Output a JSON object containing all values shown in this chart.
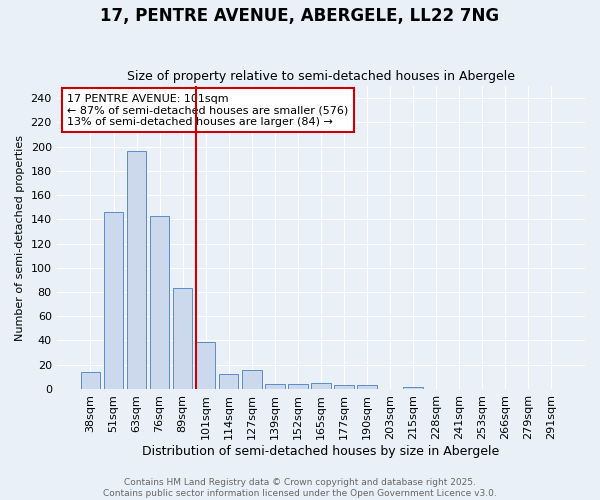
{
  "title1": "17, PENTRE AVENUE, ABERGELE, LL22 7NG",
  "title2": "Size of property relative to semi-detached houses in Abergele",
  "xlabel": "Distribution of semi-detached houses by size in Abergele",
  "ylabel": "Number of semi-detached properties",
  "categories": [
    "38sqm",
    "51sqm",
    "63sqm",
    "76sqm",
    "89sqm",
    "101sqm",
    "114sqm",
    "127sqm",
    "139sqm",
    "152sqm",
    "165sqm",
    "177sqm",
    "190sqm",
    "203sqm",
    "215sqm",
    "228sqm",
    "241sqm",
    "253sqm",
    "266sqm",
    "279sqm",
    "291sqm"
  ],
  "values": [
    14,
    146,
    196,
    143,
    83,
    39,
    12,
    16,
    4,
    4,
    5,
    3,
    3,
    0,
    2,
    0,
    0,
    0,
    0,
    0,
    0
  ],
  "highlight_index": 5,
  "bar_color": "#ccd9ec",
  "bar_edge_color": "#5b8cc8",
  "highlight_line_color": "#cc0000",
  "background_color": "#eaf0f8",
  "plot_bg_color": "#eaf0f8",
  "grid_color": "#ffffff",
  "annotation_text": "17 PENTRE AVENUE: 101sqm\n← 87% of semi-detached houses are smaller (576)\n13% of semi-detached houses are larger (84) →",
  "annotation_box_facecolor": "#ffffff",
  "annotation_box_edgecolor": "#cc0000",
  "footer_text": "Contains HM Land Registry data © Crown copyright and database right 2025.\nContains public sector information licensed under the Open Government Licence v3.0.",
  "footer_color": "#666666",
  "ylim": [
    0,
    250
  ],
  "yticks": [
    0,
    20,
    40,
    60,
    80,
    100,
    120,
    140,
    160,
    180,
    200,
    220,
    240
  ],
  "title1_fontsize": 12,
  "title2_fontsize": 9,
  "xlabel_fontsize": 9,
  "ylabel_fontsize": 8,
  "tick_fontsize": 8,
  "annotation_fontsize": 8,
  "footer_fontsize": 6.5
}
